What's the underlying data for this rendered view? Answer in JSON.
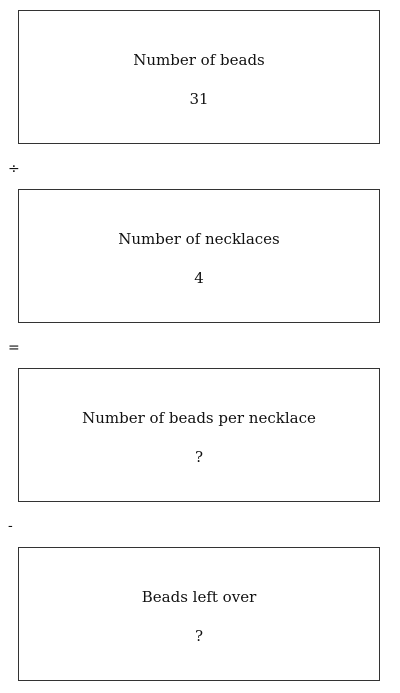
{
  "boxes": [
    {
      "label": "Number of beads",
      "value": "31"
    },
    {
      "label": "Number of necklaces",
      "value": "4"
    },
    {
      "label": "Number of beads per necklace",
      "value": "?"
    },
    {
      "label": "Beads left over",
      "value": "?"
    }
  ],
  "operators": [
    "÷",
    "=",
    "-"
  ]
}
